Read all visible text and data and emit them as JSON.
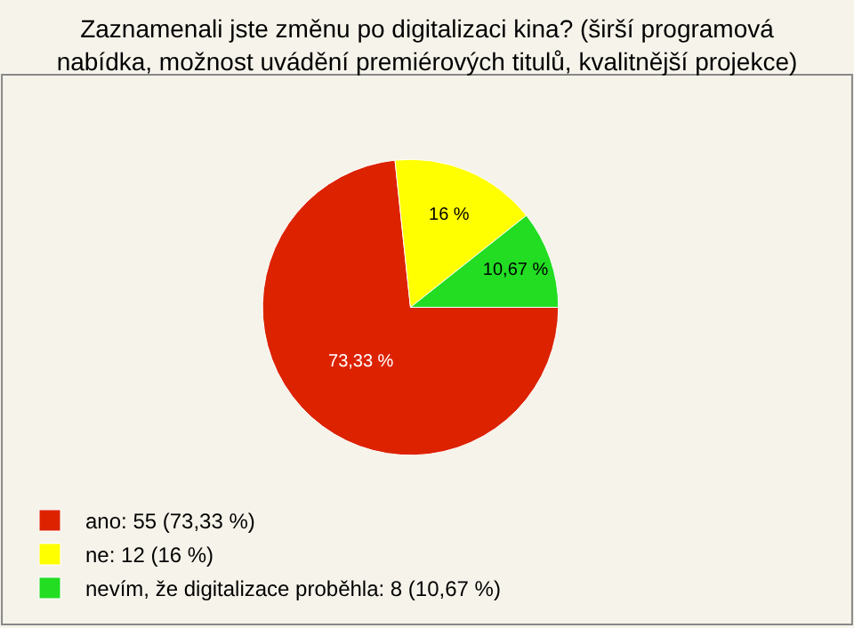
{
  "chart_data": {
    "type": "pie",
    "title": "Zaznamenali jste změnu po digitalizaci kina? (širší programová nabídka, možnost uvádění premiérových titulů, kvalitnější projekce)",
    "categories": [
      "ano: 55 (73,33 %)",
      "ne: 12 (16 %)",
      "nevím, že digitalizace proběhla: 8 (10,67 %)"
    ],
    "values": [
      73.33,
      16,
      10.67
    ],
    "value_labels": [
      "73,33 %",
      "16 %",
      "10,67 %"
    ],
    "colors": [
      "#dd2200",
      "#ffff00",
      "#22dd22"
    ],
    "legend": "bottom left"
  }
}
